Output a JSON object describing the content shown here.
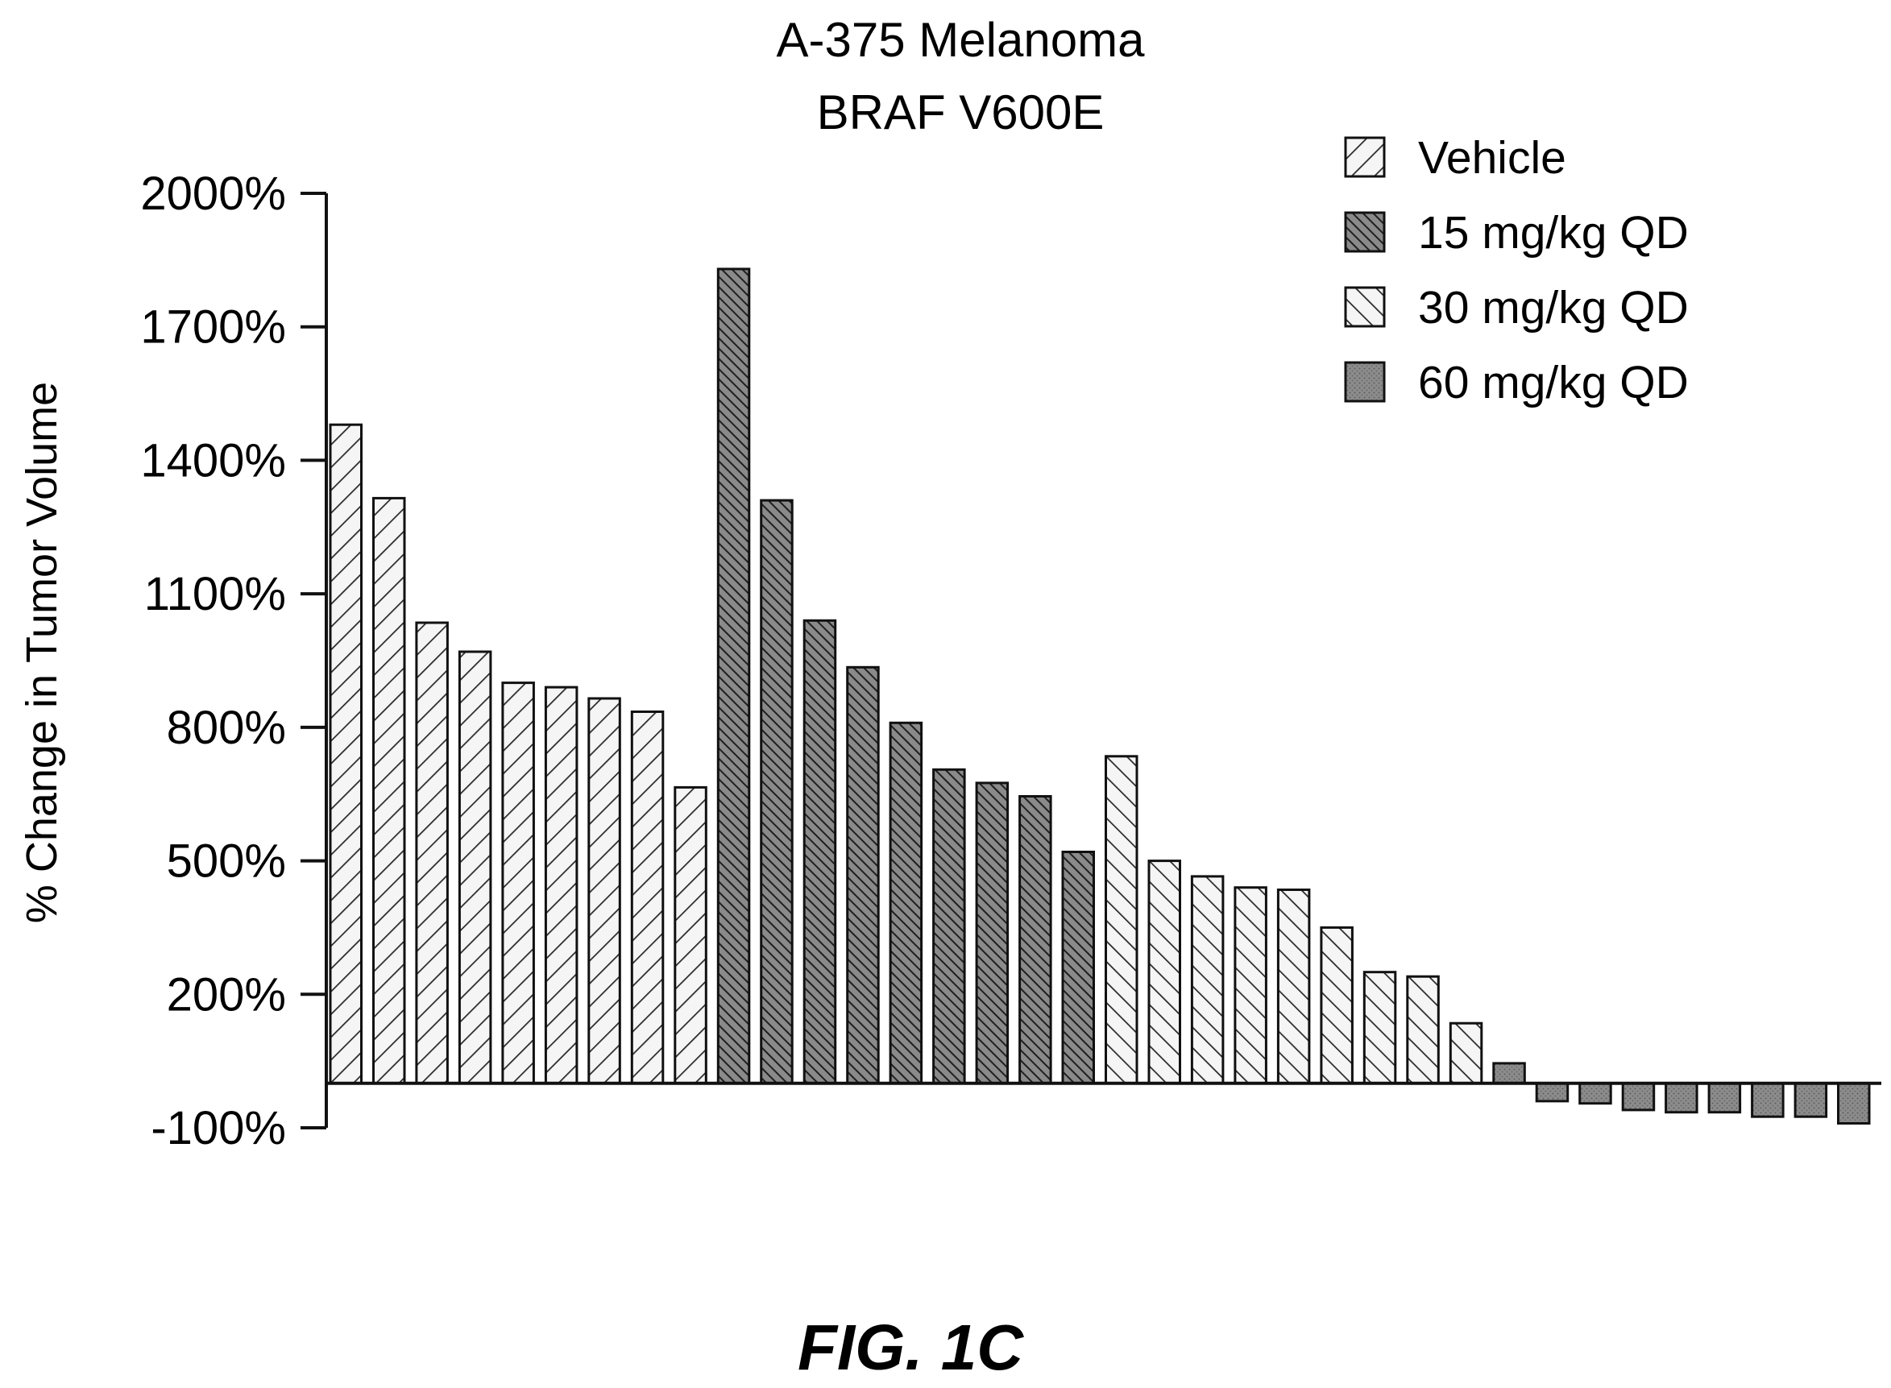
{
  "chart_data": {
    "type": "bar",
    "title": "A-375 Melanoma",
    "subtitle": "BRAF V600E",
    "xlabel": "",
    "ylabel": "% Change in Tumor Volume",
    "ylim": [
      -100,
      2000
    ],
    "yticks": [
      2000,
      1700,
      1400,
      1100,
      800,
      500,
      200,
      -100
    ],
    "ytick_labels": [
      "2000%",
      "1700%",
      "1400%",
      "1100%",
      "800%",
      "500%",
      "200%",
      "-100%"
    ],
    "grid": false,
    "legend_position": "top-right",
    "series": [
      {
        "name": "Vehicle",
        "pattern": "hatch-forward",
        "values": [
          1480,
          1315,
          1035,
          970,
          900,
          890,
          865,
          835,
          665
        ]
      },
      {
        "name": "15 mg/kg QD",
        "pattern": "hatch-dense-dark",
        "values": [
          1830,
          1310,
          1040,
          935,
          810,
          705,
          675,
          645,
          520
        ]
      },
      {
        "name": "30 mg/kg QD",
        "pattern": "hatch-backward",
        "values": [
          735,
          500,
          465,
          440,
          435,
          350,
          250,
          240,
          135
        ]
      },
      {
        "name": "60 mg/kg QD",
        "pattern": "solid-gray",
        "values": [
          45,
          -40,
          -45,
          -60,
          -65,
          -65,
          -75,
          -75,
          -90
        ]
      }
    ]
  },
  "figure_label": "FIG. 1C"
}
